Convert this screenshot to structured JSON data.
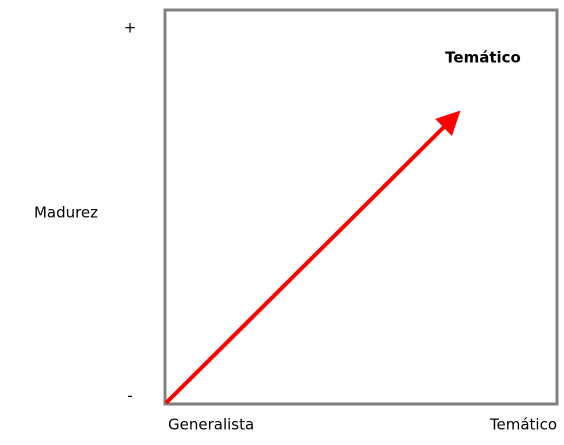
{
  "diagram": {
    "y_axis": {
      "label": "Madurez",
      "top": "+",
      "bottom": "-"
    },
    "x_axis": {
      "left": "Generalista",
      "right": "Temático"
    },
    "annotation": "Temático"
  }
}
